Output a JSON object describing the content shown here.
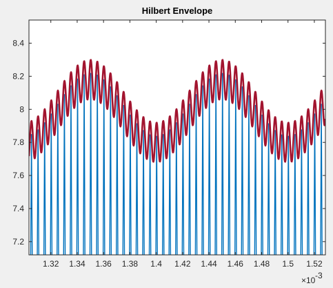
{
  "chart_data": {
    "type": "line",
    "title": "Hilbert Envelope",
    "xlabel": "",
    "ylabel": "",
    "x_exponent_label": "×10",
    "x_exponent_power": "-3",
    "xlim": [
      1.3034,
      1.5284
    ],
    "ylim": [
      7.12,
      8.54
    ],
    "x_ticks": [
      1.32,
      1.34,
      1.36,
      1.38,
      1.4,
      1.42,
      1.44,
      1.46,
      1.48,
      1.5,
      1.52
    ],
    "x_tick_labels": [
      "1.32",
      "1.34",
      "1.36",
      "1.38",
      "1.4",
      "1.42",
      "1.44",
      "1.46",
      "1.48",
      "1.5",
      "1.52"
    ],
    "y_ticks": [
      7.2,
      7.4,
      7.6,
      7.8,
      8.0,
      8.2,
      8.4
    ],
    "y_tick_labels": [
      "7.2",
      "7.4",
      "7.6",
      "7.8",
      "8",
      "8.2",
      "8.4"
    ],
    "grid": false,
    "legend": "none",
    "signal_model": {
      "envelope_center": 7.99,
      "slow_amplitude": 0.19,
      "slow_period": 0.1,
      "slow_peak_x": 1.35,
      "ripple_amplitude": 0.12,
      "ripple_period": 0.005,
      "ripple_peak_offset": 0.0003,
      "spike_top_offset": -0.08,
      "spike_bottom": 7.1
    },
    "series": [
      {
        "color": "#0072bd"
      },
      {
        "color": "#a2142f"
      }
    ]
  }
}
